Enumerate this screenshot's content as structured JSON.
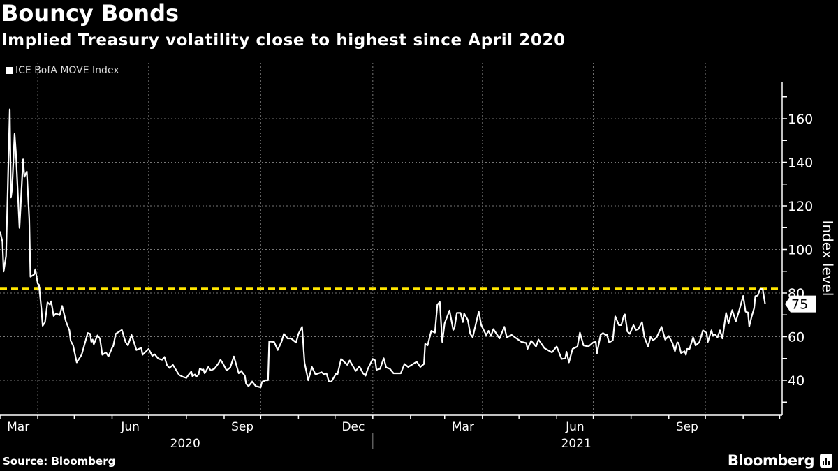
{
  "header": {
    "title": "Bouncy Bonds",
    "subtitle": "Implied Treasury volatility close to highest since April 2020"
  },
  "footer": {
    "source": "Source: Bloomberg",
    "logo": "Bloomberg"
  },
  "colors": {
    "background": "#000000",
    "line": "#ffffff",
    "threshold": "#ffe600",
    "grid": "#777777"
  },
  "chart_data": {
    "type": "line",
    "title": "Bouncy Bonds",
    "subtitle": "Implied Treasury volatility close to highest since April 2020",
    "ylabel": "Index level",
    "xlabel": "",
    "x_unit": "days since 2020-03-01",
    "xlim": [
      0,
      638
    ],
    "ylim": [
      24,
      176
    ],
    "y_ticks": [
      40,
      60,
      80,
      100,
      120,
      140,
      160
    ],
    "x_tick_labels": [
      {
        "label": "Mar",
        "day": 15
      },
      {
        "label": "Jun",
        "day": 107
      },
      {
        "label": "Sep",
        "day": 199
      },
      {
        "label": "Dec",
        "day": 290
      },
      {
        "label": "Mar",
        "day": 380
      },
      {
        "label": "Jun",
        "day": 472
      },
      {
        "label": "Sep",
        "day": 564
      }
    ],
    "year_labels": [
      {
        "label": "2020",
        "day": 152
      },
      {
        "label": "2021",
        "day": 473
      }
    ],
    "grid": true,
    "legend": {
      "position": "top-left",
      "entries": [
        "ICE BofA MOVE Index"
      ]
    },
    "threshold": {
      "value": 82,
      "style": "dashed"
    },
    "last_value_label": "75",
    "series": [
      {
        "name": "ICE BofA MOVE Index",
        "points": [
          [
            0,
            108.3
          ],
          [
            2,
            103.5
          ],
          [
            3,
            89.9
          ],
          [
            5,
            97
          ],
          [
            8,
            164.3
          ],
          [
            9,
            123.8
          ],
          [
            10,
            128
          ],
          [
            12,
            153
          ],
          [
            13,
            145
          ],
          [
            16,
            109.9
          ],
          [
            19,
            141.3
          ],
          [
            20,
            133.3
          ],
          [
            22,
            135.7
          ],
          [
            24,
            114
          ],
          [
            25,
            87.5
          ],
          [
            28,
            88.5
          ],
          [
            29,
            90.9
          ],
          [
            31,
            84.3
          ],
          [
            32,
            83.8
          ],
          [
            34,
            72.6
          ],
          [
            35,
            65
          ],
          [
            37,
            66.7
          ],
          [
            39,
            75.7
          ],
          [
            41,
            74.7
          ],
          [
            42,
            76.2
          ],
          [
            44,
            69.5
          ],
          [
            46,
            70.6
          ],
          [
            49,
            69.9
          ],
          [
            51,
            74.1
          ],
          [
            54,
            67.2
          ],
          [
            57,
            62.9
          ],
          [
            58,
            58.1
          ],
          [
            60,
            56
          ],
          [
            63,
            48.2
          ],
          [
            67,
            51.7
          ],
          [
            70,
            57.6
          ],
          [
            72,
            61.7
          ],
          [
            74,
            61.3
          ],
          [
            75,
            57.6
          ],
          [
            76,
            58.7
          ],
          [
            77,
            56.5
          ],
          [
            80,
            60.6
          ],
          [
            82,
            59.2
          ],
          [
            84,
            51.7
          ],
          [
            87,
            52.8
          ],
          [
            89,
            50.9
          ],
          [
            92,
            54.9
          ],
          [
            93,
            55.7
          ],
          [
            95,
            61.3
          ],
          [
            98,
            62.4
          ],
          [
            100,
            63.1
          ],
          [
            103,
            57.6
          ],
          [
            105,
            56
          ],
          [
            108,
            60.8
          ],
          [
            112,
            53.9
          ],
          [
            116,
            54.9
          ],
          [
            117,
            51.7
          ],
          [
            122,
            54.4
          ],
          [
            125,
            51.2
          ],
          [
            127,
            51.9
          ],
          [
            130,
            49.9
          ],
          [
            133,
            49.4
          ],
          [
            135,
            50.7
          ],
          [
            137,
            47
          ],
          [
            139,
            45.7
          ],
          [
            142,
            47
          ],
          [
            147,
            42.5
          ],
          [
            150,
            41.6
          ],
          [
            153,
            41.1
          ],
          [
            155,
            42.7
          ],
          [
            157,
            44
          ],
          [
            158,
            41.9
          ],
          [
            160,
            42.7
          ],
          [
            161,
            41.6
          ],
          [
            163,
            42.7
          ],
          [
            164,
            45.3
          ],
          [
            166,
            44.8
          ],
          [
            167,
            45
          ],
          [
            168,
            43.2
          ],
          [
            171,
            46.1
          ],
          [
            173,
            44.5
          ],
          [
            176,
            45.3
          ],
          [
            179,
            47.5
          ],
          [
            181,
            49.4
          ],
          [
            183,
            47.7
          ],
          [
            186,
            44.5
          ],
          [
            189,
            45.9
          ],
          [
            192,
            50.9
          ],
          [
            196,
            43.2
          ],
          [
            198,
            44.3
          ],
          [
            201,
            42.1
          ],
          [
            202,
            38.4
          ],
          [
            204,
            37.3
          ],
          [
            207,
            39.4
          ],
          [
            210,
            37.3
          ],
          [
            214,
            36.8
          ],
          [
            215,
            39.2
          ],
          [
            218,
            40
          ],
          [
            220,
            40
          ],
          [
            221,
            57.8
          ],
          [
            225,
            57.6
          ],
          [
            228,
            53.9
          ],
          [
            231,
            57.6
          ],
          [
            233,
            61.3
          ],
          [
            236,
            59.2
          ],
          [
            239,
            59.2
          ],
          [
            243,
            57.3
          ],
          [
            245,
            61.3
          ],
          [
            248,
            64.5
          ],
          [
            250,
            48
          ],
          [
            253,
            40
          ],
          [
            256,
            46.1
          ],
          [
            259,
            42.7
          ],
          [
            264,
            43.7
          ],
          [
            266,
            42.7
          ],
          [
            268,
            43.2
          ],
          [
            270,
            39.4
          ],
          [
            272,
            39.4
          ],
          [
            276,
            43.2
          ],
          [
            277,
            42.7
          ],
          [
            280,
            49.8
          ],
          [
            285,
            47.1
          ],
          [
            287,
            49.1
          ],
          [
            292,
            44.3
          ],
          [
            295,
            46.4
          ],
          [
            298,
            43.2
          ],
          [
            300,
            42.1
          ],
          [
            302,
            45.3
          ],
          [
            306,
            49.8
          ],
          [
            308,
            49.1
          ],
          [
            309,
            44.8
          ],
          [
            312,
            45.3
          ],
          [
            315,
            50.1
          ],
          [
            317,
            45.9
          ],
          [
            320,
            45.3
          ],
          [
            323,
            43.2
          ],
          [
            327,
            43.2
          ],
          [
            329,
            43.2
          ],
          [
            332,
            47.5
          ],
          [
            335,
            46.1
          ],
          [
            338,
            47.1
          ],
          [
            342,
            48.5
          ],
          [
            345,
            46.1
          ],
          [
            348,
            47.5
          ],
          [
            349,
            56.7
          ],
          [
            351,
            56
          ],
          [
            354,
            62.7
          ],
          [
            357,
            61.9
          ],
          [
            359,
            74.7
          ],
          [
            361,
            75.9
          ],
          [
            363,
            57.6
          ],
          [
            365,
            66.1
          ],
          [
            369,
            72
          ],
          [
            372,
            63.1
          ],
          [
            373,
            63.8
          ],
          [
            375,
            70.9
          ],
          [
            378,
            70.9
          ],
          [
            380,
            66.7
          ],
          [
            381,
            70.6
          ],
          [
            384,
            67.7
          ],
          [
            386,
            61.3
          ],
          [
            388,
            59.7
          ],
          [
            393,
            71.5
          ],
          [
            395,
            65.3
          ],
          [
            399,
            60.8
          ],
          [
            401,
            62.7
          ],
          [
            403,
            60.3
          ],
          [
            405,
            63.5
          ],
          [
            410,
            59.2
          ],
          [
            414,
            64.5
          ],
          [
            416,
            59.7
          ],
          [
            420,
            60.8
          ],
          [
            424,
            59.2
          ],
          [
            428,
            57.6
          ],
          [
            432,
            57.1
          ],
          [
            433,
            54.4
          ],
          [
            436,
            58.1
          ],
          [
            440,
            55.5
          ],
          [
            442,
            58.7
          ],
          [
            447,
            54.7
          ],
          [
            453,
            52.8
          ],
          [
            457,
            55.5
          ],
          [
            461,
            49.8
          ],
          [
            464,
            50.1
          ],
          [
            465,
            53.1
          ],
          [
            467,
            48.2
          ],
          [
            470,
            54.4
          ],
          [
            474,
            55.5
          ],
          [
            476,
            61.9
          ],
          [
            479,
            56
          ],
          [
            483,
            55.5
          ],
          [
            487,
            57.4
          ],
          [
            489,
            57.6
          ],
          [
            490,
            52.3
          ],
          [
            493,
            60.8
          ],
          [
            495,
            61.7
          ],
          [
            497,
            60.8
          ],
          [
            498,
            61.1
          ],
          [
            500,
            57.4
          ],
          [
            503,
            58.3
          ],
          [
            505,
            69.3
          ],
          [
            508,
            65.3
          ],
          [
            510,
            65.3
          ],
          [
            512,
            69.5
          ],
          [
            513,
            70.2
          ],
          [
            515,
            62.4
          ],
          [
            517,
            61.3
          ],
          [
            520,
            65.3
          ],
          [
            522,
            63.1
          ],
          [
            524,
            63.5
          ],
          [
            527,
            66.7
          ],
          [
            529,
            59.7
          ],
          [
            532,
            55.5
          ],
          [
            534,
            59.9
          ],
          [
            536,
            58.3
          ],
          [
            539,
            59.7
          ],
          [
            543,
            64.5
          ],
          [
            546,
            58.7
          ],
          [
            549,
            60.3
          ],
          [
            552,
            57.1
          ],
          [
            554,
            53.3
          ],
          [
            556,
            57.4
          ],
          [
            557,
            57.1
          ],
          [
            559,
            52.5
          ],
          [
            562,
            53.3
          ],
          [
            563,
            51.7
          ],
          [
            564,
            54.4
          ],
          [
            566,
            54.4
          ],
          [
            569,
            59.7
          ],
          [
            571,
            56
          ],
          [
            574,
            57.4
          ],
          [
            577,
            62.9
          ],
          [
            580,
            61.7
          ],
          [
            581,
            57.6
          ],
          [
            584,
            62.9
          ],
          [
            585,
            60.8
          ],
          [
            587,
            61
          ],
          [
            589,
            59.7
          ],
          [
            591,
            62.9
          ],
          [
            593,
            59.2
          ],
          [
            596,
            70.9
          ],
          [
            598,
            66.1
          ],
          [
            601,
            72.2
          ],
          [
            604,
            67
          ],
          [
            607,
            72.5
          ],
          [
            610,
            78.7
          ],
          [
            612,
            71.5
          ],
          [
            614,
            71.1
          ],
          [
            615,
            64.7
          ],
          [
            617,
            69.3
          ],
          [
            619,
            73.1
          ],
          [
            620,
            78.6
          ],
          [
            622,
            78.9
          ],
          [
            624,
            81.9
          ],
          [
            626,
            81.9
          ],
          [
            628,
            75
          ]
        ]
      }
    ]
  }
}
